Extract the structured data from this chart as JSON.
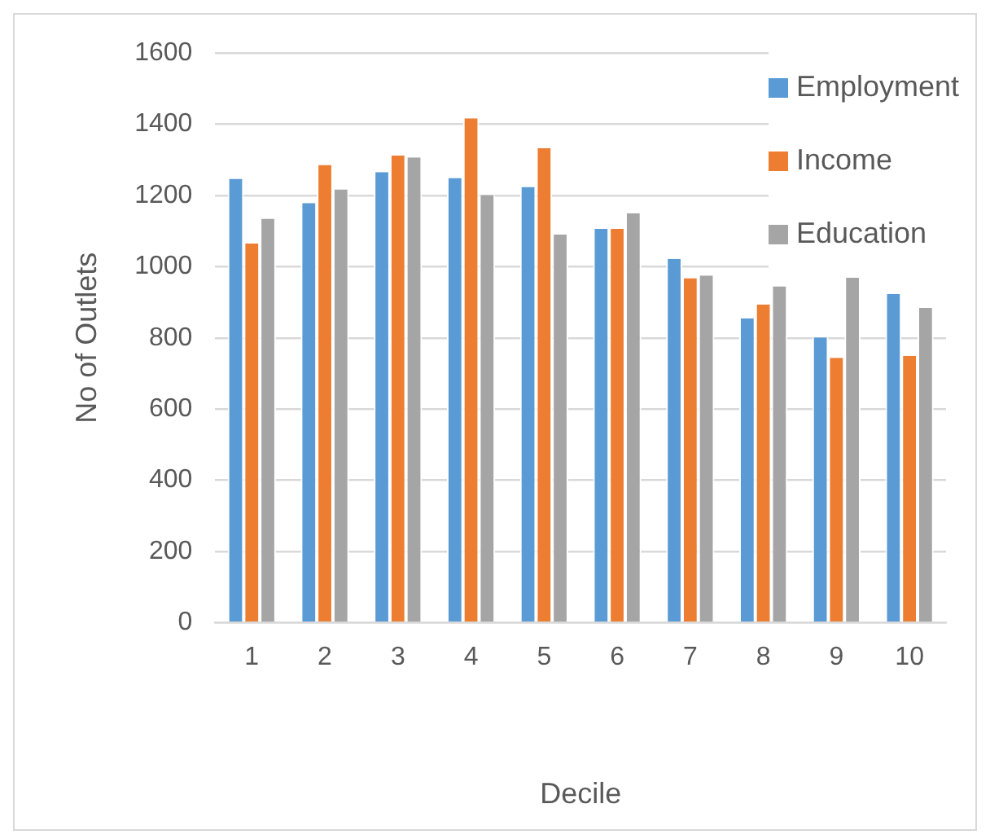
{
  "chart_data": {
    "type": "bar",
    "xlabel": "Decile",
    "ylabel": "No of Outlets",
    "categories": [
      "1",
      "2",
      "3",
      "4",
      "5",
      "6",
      "7",
      "8",
      "9",
      "10"
    ],
    "series": [
      {
        "name": "Employment",
        "color": "#5b9bd5",
        "values": [
          1247,
          1179,
          1266,
          1249,
          1224,
          1106,
          1022,
          855,
          801,
          923
        ]
      },
      {
        "name": "Income",
        "color": "#ed7d31",
        "values": [
          1065,
          1286,
          1312,
          1417,
          1333,
          1106,
          968,
          894,
          744,
          750
        ]
      },
      {
        "name": "Education",
        "color": "#a5a5a5",
        "values": [
          1135,
          1217,
          1307,
          1201,
          1090,
          1150,
          975,
          945,
          969,
          884
        ]
      }
    ],
    "ylim": [
      0,
      1600
    ],
    "yticks": [
      0,
      200,
      400,
      600,
      800,
      1000,
      1200,
      1400,
      1600
    ],
    "grid": "y",
    "legend": "top right"
  }
}
